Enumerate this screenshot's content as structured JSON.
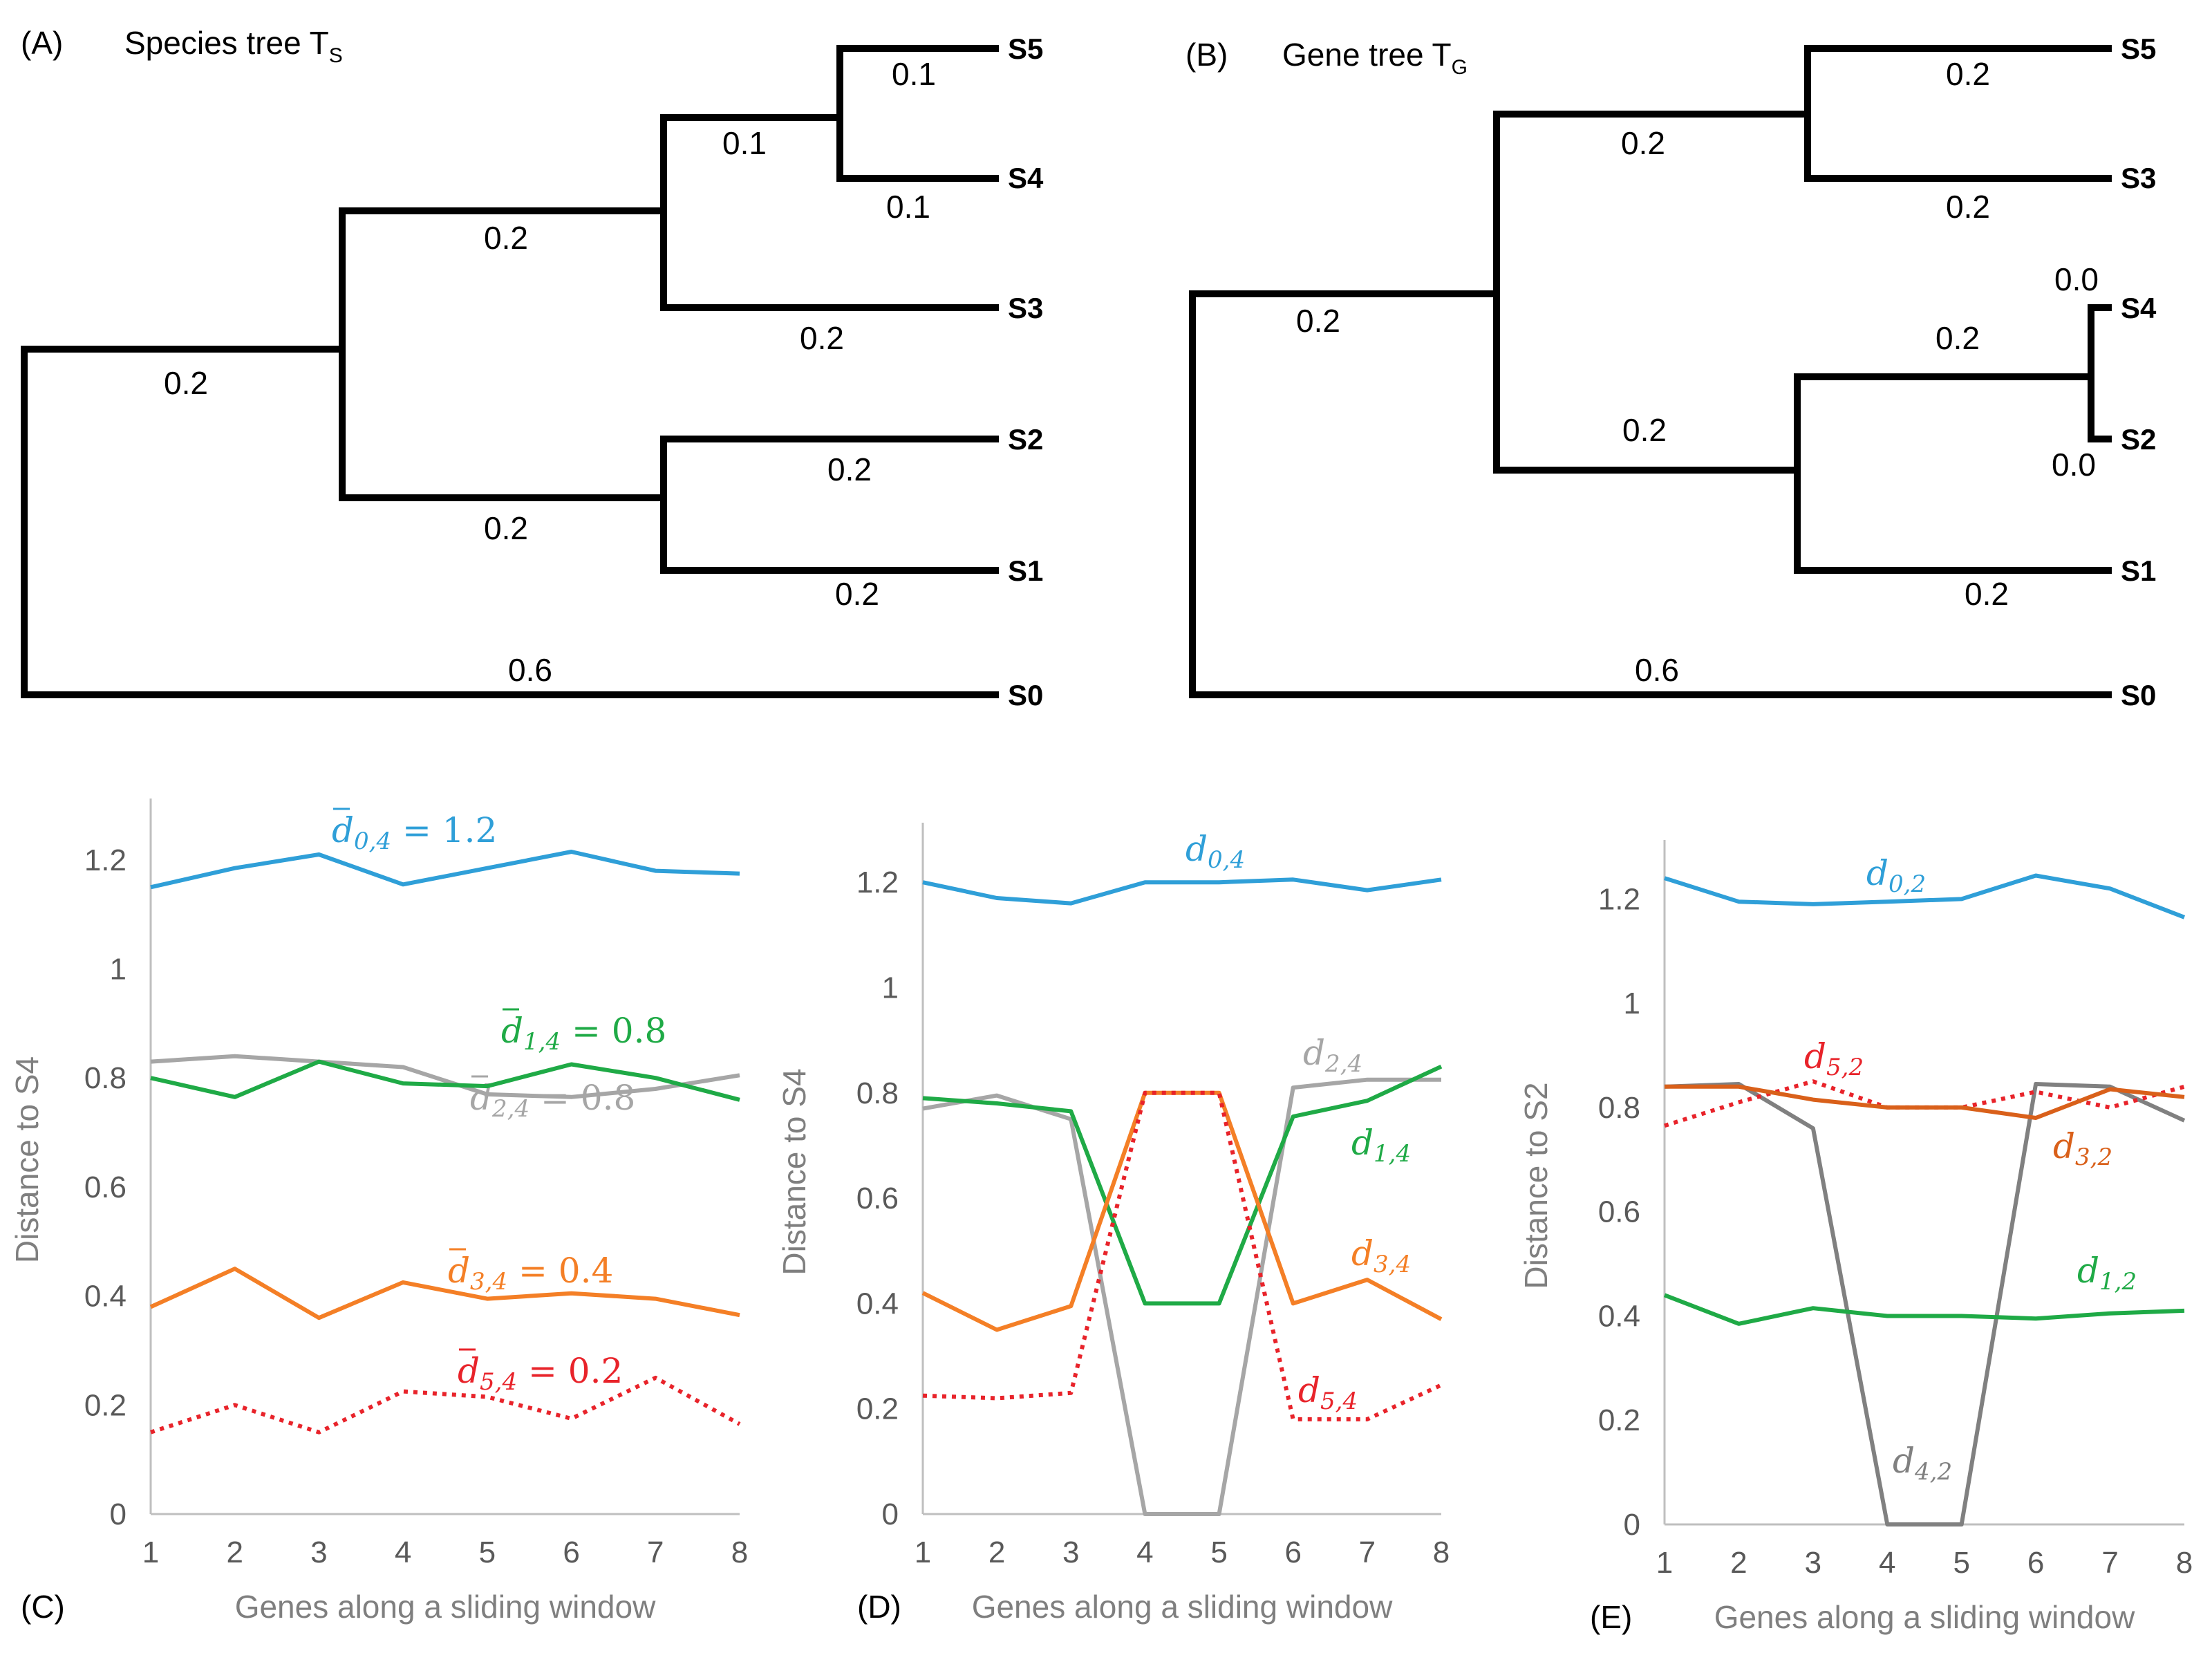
{
  "trees": {
    "A": {
      "panel_label": "(A)",
      "title": "Species tree T",
      "title_sub": "S",
      "leaves": [
        "S5",
        "S4",
        "S3",
        "S2",
        "S1",
        "S0"
      ],
      "branch_lengths": [
        "0.1",
        "0.1",
        "0.1",
        "0.2",
        "0.2",
        "0.2",
        "0.2",
        "0.2",
        "0.2",
        "0.6"
      ]
    },
    "B": {
      "panel_label": "(B)",
      "title": "Gene tree T",
      "title_sub": "G",
      "leaves": [
        "S5",
        "S3",
        "S4",
        "S2",
        "S1",
        "S0"
      ],
      "branch_lengths": [
        "0.2",
        "0.2",
        "0.2",
        "0.2",
        "0.0",
        "0.0",
        "0.2",
        "0.2",
        "0.2",
        "0.6"
      ]
    }
  },
  "colors": {
    "d0": "#2f9fd8",
    "d1": "#1faa46",
    "d2": "#a6a6a6",
    "d3": "#f47f26",
    "d5": "#e8232a",
    "d4_dark": "#808080",
    "d3_dark": "#d9601a"
  },
  "chart_data": [
    {
      "panel_label": "(C)",
      "type": "line",
      "xlabel": "Genes along a sliding window",
      "ylabel": "Distance to S4",
      "x": [
        1,
        2,
        3,
        4,
        5,
        6,
        7,
        8
      ],
      "ylim": [
        0,
        1.3
      ],
      "yticks": [
        "0",
        "0.2",
        "0.4",
        "0.6",
        "0.8",
        "1",
        "1.2"
      ],
      "series": [
        {
          "name": "d0,4",
          "label_base": "d",
          "label_sub": "0,4",
          "label_eq": " = 1.2",
          "overbar": true,
          "color_key": "d0",
          "dotted": false,
          "values": [
            1.15,
            1.185,
            1.21,
            1.155,
            1.185,
            1.215,
            1.18,
            1.175
          ]
        },
        {
          "name": "d2,4",
          "label_base": "d",
          "label_sub": "2,4",
          "label_eq": " = 0.8",
          "overbar": true,
          "color_key": "d2",
          "dotted": false,
          "values": [
            0.83,
            0.84,
            0.83,
            0.82,
            0.77,
            0.765,
            0.78,
            0.805
          ]
        },
        {
          "name": "d1,4",
          "label_base": "d",
          "label_sub": "1,4",
          "label_eq": " = 0.8",
          "overbar": true,
          "color_key": "d1",
          "dotted": false,
          "values": [
            0.8,
            0.765,
            0.83,
            0.79,
            0.785,
            0.825,
            0.8,
            0.76
          ]
        },
        {
          "name": "d3,4",
          "label_base": "d",
          "label_sub": "3,4",
          "label_eq": " = 0.4",
          "overbar": true,
          "color_key": "d3",
          "dotted": false,
          "values": [
            0.38,
            0.45,
            0.36,
            0.425,
            0.395,
            0.405,
            0.395,
            0.365
          ]
        },
        {
          "name": "d5,4",
          "label_base": "d",
          "label_sub": "5,4",
          "label_eq": " = 0.2",
          "overbar": true,
          "color_key": "d5",
          "dotted": true,
          "values": [
            0.15,
            0.2,
            0.15,
            0.225,
            0.215,
            0.175,
            0.25,
            0.165
          ]
        }
      ]
    },
    {
      "panel_label": "(D)",
      "type": "line",
      "xlabel": "Genes along a sliding window",
      "ylabel": "Distance to S4",
      "x": [
        1,
        2,
        3,
        4,
        5,
        6,
        7,
        8
      ],
      "ylim": [
        0,
        1.3
      ],
      "yticks": [
        "0",
        "0.2",
        "0.4",
        "0.6",
        "0.8",
        "1",
        "1.2"
      ],
      "series": [
        {
          "name": "d0,4",
          "label_base": "d",
          "label_sub": "0,4",
          "label_eq": "",
          "overbar": false,
          "color_key": "d0",
          "dotted": false,
          "values": [
            1.2,
            1.17,
            1.16,
            1.2,
            1.2,
            1.205,
            1.185,
            1.205
          ]
        },
        {
          "name": "d2,4",
          "label_base": "d",
          "label_sub": "2,4",
          "label_eq": "",
          "overbar": false,
          "color_key": "d2",
          "dotted": false,
          "values": [
            0.77,
            0.795,
            0.75,
            0.0,
            0.0,
            0.81,
            0.825,
            0.825
          ]
        },
        {
          "name": "d1,4",
          "label_base": "d",
          "label_sub": "1,4",
          "label_eq": "",
          "overbar": false,
          "color_key": "d1",
          "dotted": false,
          "values": [
            0.79,
            0.78,
            0.765,
            0.4,
            0.4,
            0.755,
            0.785,
            0.85
          ]
        },
        {
          "name": "d3,4",
          "label_base": "d",
          "label_sub": "3,4",
          "label_eq": "",
          "overbar": false,
          "color_key": "d3",
          "dotted": false,
          "values": [
            0.42,
            0.35,
            0.395,
            0.8,
            0.8,
            0.4,
            0.445,
            0.37
          ]
        },
        {
          "name": "d5,4",
          "label_base": "d",
          "label_sub": "5,4",
          "label_eq": "",
          "overbar": false,
          "color_key": "d5",
          "dotted": true,
          "values": [
            0.225,
            0.22,
            0.23,
            0.8,
            0.8,
            0.18,
            0.18,
            0.245
          ]
        }
      ]
    },
    {
      "panel_label": "(E)",
      "type": "line",
      "xlabel": "Genes along a sliding window",
      "ylabel": "Distance to S2",
      "x": [
        1,
        2,
        3,
        4,
        5,
        6,
        7,
        8
      ],
      "ylim": [
        0,
        1.3
      ],
      "yticks": [
        "0",
        "0.2",
        "0.4",
        "0.6",
        "0.8",
        "1",
        "1.2"
      ],
      "series": [
        {
          "name": "d0,2",
          "label_base": "d",
          "label_sub": "0,2",
          "label_eq": "",
          "overbar": false,
          "color_key": "d0",
          "dotted": false,
          "values": [
            1.24,
            1.195,
            1.19,
            1.195,
            1.2,
            1.245,
            1.22,
            1.165
          ]
        },
        {
          "name": "d4,2",
          "label_base": "d",
          "label_sub": "4,2",
          "label_eq": "",
          "overbar": false,
          "color_key": "d4_dark",
          "dotted": false,
          "values": [
            0.84,
            0.845,
            0.76,
            0.0,
            0.0,
            0.845,
            0.84,
            0.775
          ]
        },
        {
          "name": "d5,2",
          "label_base": "d",
          "label_sub": "5,2",
          "label_eq": "",
          "overbar": false,
          "color_key": "d5",
          "dotted": true,
          "values": [
            0.765,
            0.81,
            0.85,
            0.8,
            0.8,
            0.83,
            0.8,
            0.84
          ]
        },
        {
          "name": "d3,2",
          "label_base": "d",
          "label_sub": "3,2",
          "label_eq": "",
          "overbar": false,
          "color_key": "d3_dark",
          "dotted": false,
          "values": [
            0.84,
            0.84,
            0.815,
            0.8,
            0.8,
            0.78,
            0.835,
            0.82
          ]
        },
        {
          "name": "d1,2",
          "label_base": "d",
          "label_sub": "1,2",
          "label_eq": "",
          "overbar": false,
          "color_key": "d1",
          "dotted": false,
          "values": [
            0.44,
            0.385,
            0.415,
            0.4,
            0.4,
            0.395,
            0.405,
            0.41
          ]
        }
      ]
    }
  ]
}
